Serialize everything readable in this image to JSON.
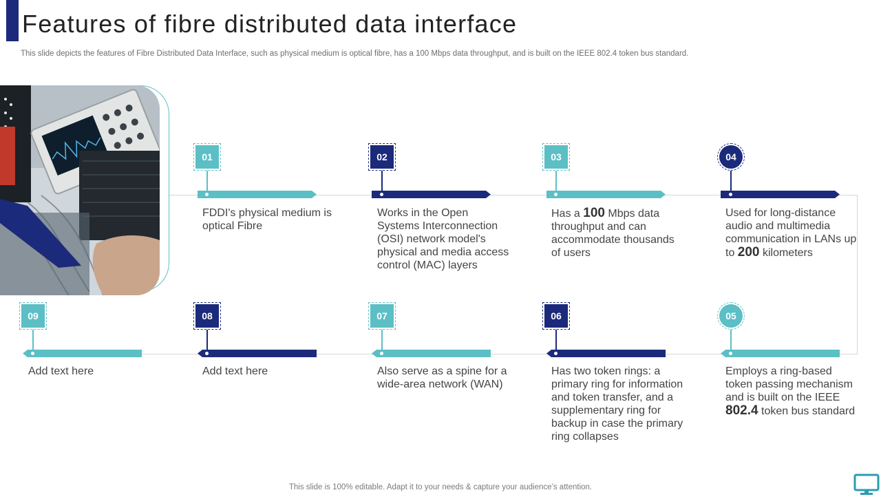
{
  "slide": {
    "title": "Features of fibre distributed data interface",
    "subtitle": "This slide depicts the features of Fibre Distributed Data Interface, such as physical medium is optical fibre, has a 100 Mbps data throughput, and is built on the IEEE 802.4 token bus standard.",
    "footer": "This slide is 100% editable. Adapt it to your needs & capture your audience’s attention."
  },
  "colors": {
    "navy": "#1b2a7a",
    "teal": "#5bbfc5",
    "text": "#444444"
  },
  "photo": {
    "subject": "oscilloscope and network test equipment",
    "icon": "photo-icon"
  },
  "features": [
    {
      "number": "01",
      "text": "FDDI's physical medium is optical Fibre"
    },
    {
      "number": "02",
      "text": "Works in the Open Systems Interconnection (OSI) network model's physical and media access control (MAC) layers"
    },
    {
      "number": "03",
      "pre": "Has a",
      "highlight": "100",
      "post": "Mbps data throughput and can accommodate thousands of users"
    },
    {
      "number": "04",
      "pre": "Used for long-distance audio and multimedia communication in LANs up to",
      "highlight": "200",
      "post": "kilometers"
    },
    {
      "number": "05",
      "pre": "Employs a ring-based token passing mechanism and is built on the IEEE",
      "highlight": "802.4",
      "post": "token bus standard"
    },
    {
      "number": "06",
      "text": "Has two token rings: a primary ring for information and token transfer, and a supplementary ring for backup in case the primary ring collapses"
    },
    {
      "number": "07",
      "text": "Also serve as a spine for a wide-area network (WAN)"
    },
    {
      "number": "08",
      "text": "Add text here"
    },
    {
      "number": "09",
      "text": "Add text here"
    }
  ]
}
